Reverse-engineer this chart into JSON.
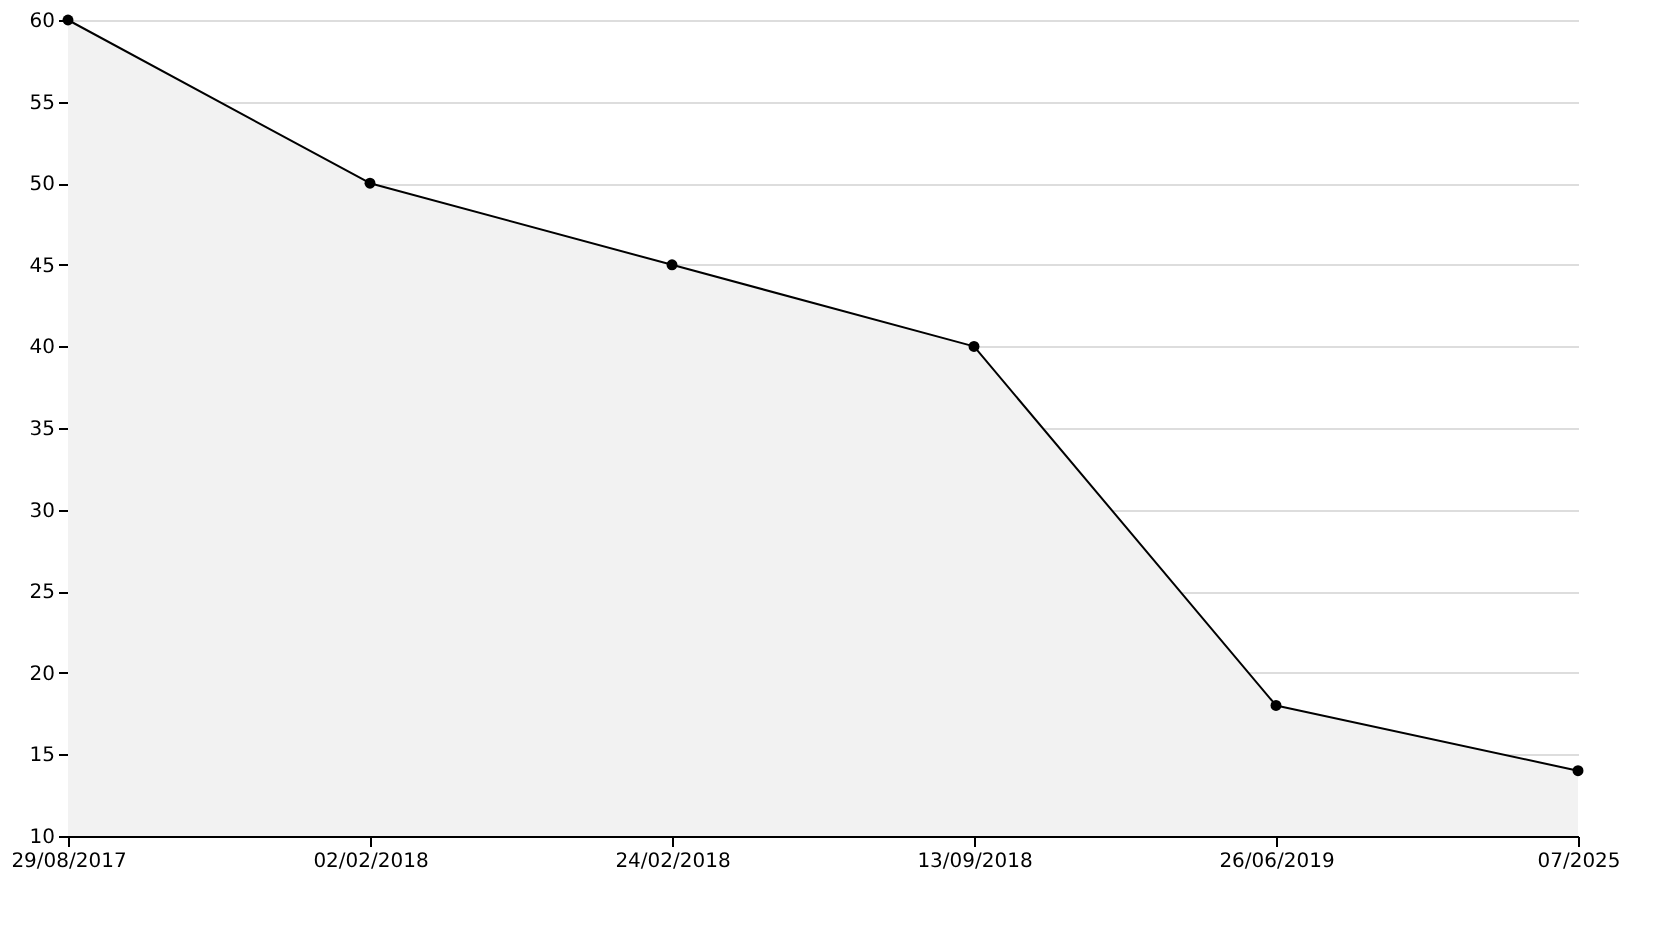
{
  "chart_data": {
    "type": "area",
    "categories": [
      "29/08/2017",
      "02/02/2018",
      "24/02/2018",
      "13/09/2018",
      "26/06/2019",
      "07/2025"
    ],
    "series": [
      {
        "color": "#000000",
        "values": [
          60,
          50,
          45,
          40,
          18,
          14
        ]
      }
    ],
    "ylim": [
      10,
      60
    ],
    "yticks": [
      10,
      15,
      20,
      25,
      30,
      35,
      40,
      45,
      50,
      55,
      60
    ],
    "grid": "y",
    "marker": "circle",
    "line_style": "solid"
  }
}
